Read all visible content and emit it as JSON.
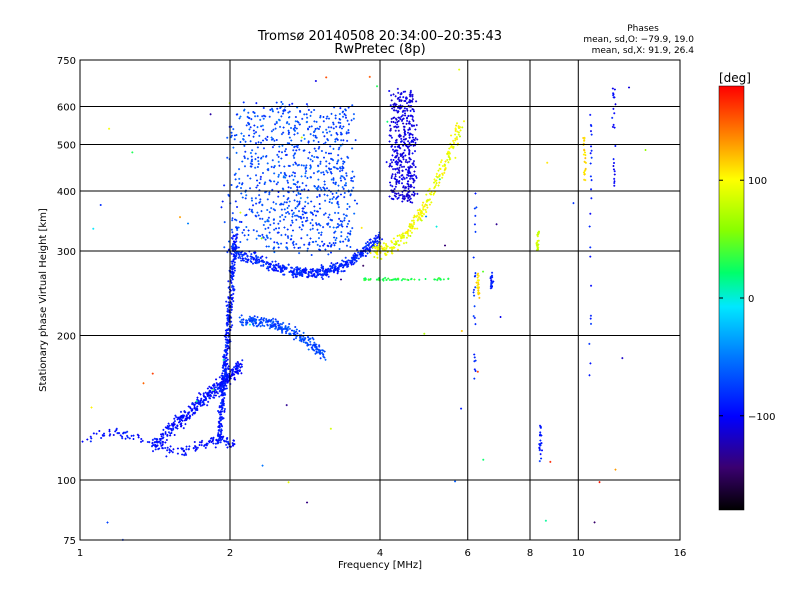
{
  "chart_data": {
    "type": "scatter",
    "title": "Tromsø 20140508 20:34:00–20:35:43",
    "subtitle": "RwPretec (8p)",
    "xlabel": "Frequency [MHz]",
    "ylabel": "Stationary phase Virtual Height [km]",
    "x_scale": "log2",
    "y_scale": "log",
    "xlim": [
      1,
      16
    ],
    "ylim": [
      75,
      750
    ],
    "x_ticks": [
      1,
      2,
      4,
      6,
      8,
      10,
      16
    ],
    "x_tick_labels": [
      "1",
      "2",
      "4",
      "6",
      "8",
      "10",
      "16"
    ],
    "y_ticks": [
      75,
      100,
      200,
      300,
      400,
      500,
      600,
      750
    ],
    "y_tick_labels": [
      "75",
      "100",
      "200",
      "300",
      "400",
      "500",
      "600",
      "750"
    ],
    "grid": true,
    "stats": {
      "heading": "Phases",
      "line_o": "mean, sd,O: −79.9, 19.0",
      "line_x": "mean, sd,X:  91.9, 26.4"
    },
    "colorbar": {
      "label": "[deg]",
      "ticks": [
        100,
        0,
        -100
      ],
      "tick_labels": [
        "100",
        "0",
        "−100"
      ],
      "range": [
        -180,
        180
      ],
      "colormap": "rainbow (black-blue-cyan-green-yellow-red)"
    },
    "point_groups": [
      {
        "desc": "low E-layer trace",
        "x_range": [
          1.0,
          2.05
        ],
        "y_range": [
          103,
          130
        ],
        "phase": -100
      },
      {
        "desc": "rising F1 trace",
        "x_range": [
          1.4,
          2.1
        ],
        "y_range": [
          115,
          175
        ],
        "phase": -95
      },
      {
        "desc": "vertical trace near 2 MHz",
        "x_range": [
          1.85,
          2.1
        ],
        "y_range": [
          120,
          320
        ],
        "phase": -90
      },
      {
        "desc": "F1 cusp",
        "x_range": [
          2.1,
          3.1
        ],
        "y_range": [
          175,
          225
        ],
        "phase": -75
      },
      {
        "desc": "F2 lower trace",
        "x_range": [
          2.0,
          4.0
        ],
        "y_range": [
          265,
          320
        ],
        "phase": -85
      },
      {
        "desc": "F2 diffuse cloud",
        "x_range": [
          2.0,
          3.5
        ],
        "y_range": [
          300,
          620
        ],
        "phase": -60
      },
      {
        "desc": "F2 O-mode critical",
        "x_range": [
          4.1,
          4.8
        ],
        "y_range": [
          400,
          650
        ],
        "phase": -110
      },
      {
        "desc": "X-mode trace",
        "x_range": [
          3.8,
          5.8
        ],
        "y_range": [
          290,
          560
        ],
        "phase": 95
      },
      {
        "desc": "sporadic verticals",
        "x_range": [
          6.2,
          12.5
        ],
        "y_range": [
          80,
          650
        ],
        "phase": -90
      }
    ]
  }
}
